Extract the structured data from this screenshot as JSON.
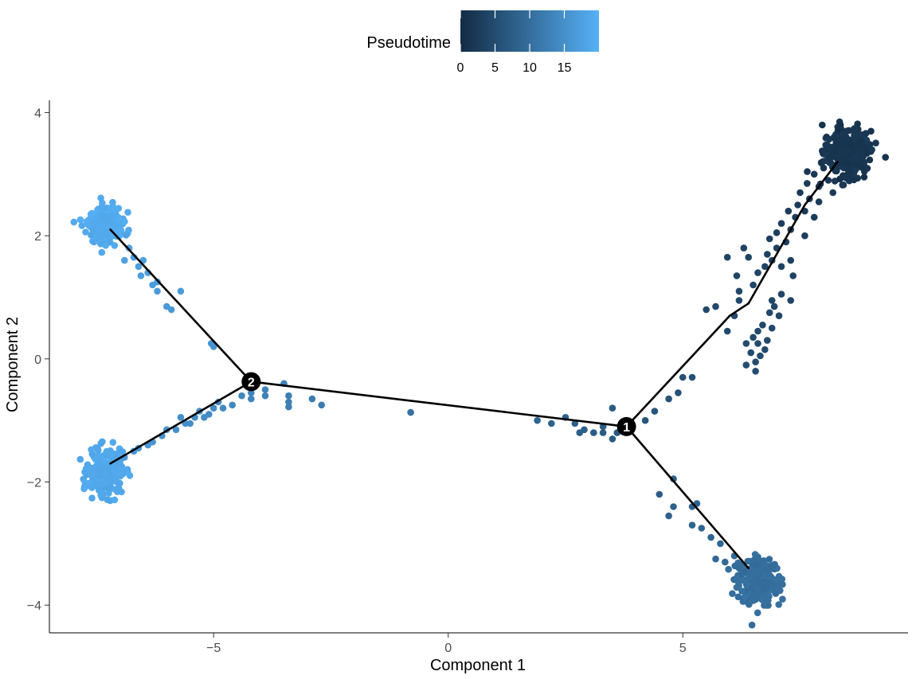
{
  "chart_data": {
    "type": "scatter",
    "xlabel": "Component 1",
    "ylabel": "Component 2",
    "xlim": [
      -8.5,
      9.8
    ],
    "ylim": [
      -4.45,
      4.2
    ],
    "x_ticks": [
      -5,
      0,
      5
    ],
    "x_tick_labels": [
      "−5",
      "0",
      "5"
    ],
    "y_ticks": [
      -4,
      -2,
      0,
      2,
      4
    ],
    "y_tick_labels": [
      "−4",
      "−2",
      "0",
      "2",
      "4"
    ],
    "grid": false,
    "legend": {
      "title": "Pseudotime",
      "placement": "top",
      "type": "colorbar",
      "range": [
        0,
        20
      ],
      "ticks": [
        0,
        5,
        10,
        15
      ],
      "tick_labels": [
        "0",
        "5",
        "10",
        "15"
      ],
      "color_low": "#132B43",
      "color_high": "#56B1F7"
    },
    "trajectory": {
      "nodes": [
        {
          "x": 8.3,
          "y": 3.2
        },
        {
          "x": 7.6,
          "y": 2.5
        },
        {
          "x": 6.4,
          "y": 0.9
        },
        {
          "x": 6.0,
          "y": 0.7
        },
        {
          "x": 3.8,
          "y": -1.1
        },
        {
          "x": -4.2,
          "y": -0.37
        },
        {
          "x": -7.2,
          "y": 2.1
        },
        {
          "x": -7.2,
          "y": -1.7
        },
        {
          "x": 6.4,
          "y": -3.4
        }
      ],
      "edges": [
        [
          0,
          1
        ],
        [
          1,
          2
        ],
        [
          2,
          3
        ],
        [
          3,
          4
        ],
        [
          4,
          5
        ],
        [
          5,
          6
        ],
        [
          5,
          7
        ],
        [
          4,
          8
        ]
      ]
    },
    "branch_points": [
      {
        "label": "1",
        "x": 3.8,
        "y": -1.1
      },
      {
        "label": "2",
        "x": -4.2,
        "y": -0.37
      }
    ],
    "clusters": [
      {
        "cx": 8.5,
        "cy": 3.35,
        "sx": 0.25,
        "sy": 0.2,
        "n": 300,
        "pseudotime": 1.5
      },
      {
        "cx": 6.6,
        "cy": -3.6,
        "sx": 0.22,
        "sy": 0.18,
        "n": 280,
        "pseudotime": 10.0
      },
      {
        "cx": -7.3,
        "cy": 2.2,
        "sx": 0.18,
        "sy": 0.15,
        "n": 250,
        "pseudotime": 19.0
      },
      {
        "cx": -7.3,
        "cy": -1.85,
        "sx": 0.18,
        "sy": 0.17,
        "n": 250,
        "pseudotime": 18.5
      }
    ],
    "points": [
      {
        "x": 8.0,
        "y": 3.1,
        "t": 1.8
      },
      {
        "x": 7.9,
        "y": 2.8,
        "t": 2.0
      },
      {
        "x": 7.7,
        "y": 2.6,
        "t": 2.3
      },
      {
        "x": 7.6,
        "y": 2.4,
        "t": 2.5
      },
      {
        "x": 7.4,
        "y": 2.3,
        "t": 2.7
      },
      {
        "x": 7.3,
        "y": 2.1,
        "t": 2.9
      },
      {
        "x": 7.2,
        "y": 1.9,
        "t": 3.1
      },
      {
        "x": 7.0,
        "y": 1.8,
        "t": 3.3
      },
      {
        "x": 6.9,
        "y": 1.6,
        "t": 3.5
      },
      {
        "x": 6.8,
        "y": 1.7,
        "t": 3.4
      },
      {
        "x": 6.6,
        "y": 1.4,
        "t": 3.8
      },
      {
        "x": 6.5,
        "y": 1.2,
        "t": 4.0
      },
      {
        "x": 6.3,
        "y": 1.8,
        "t": 3.5
      },
      {
        "x": 6.4,
        "y": 1.65,
        "t": 3.6
      },
      {
        "x": 6.15,
        "y": 1.35,
        "t": 3.9
      },
      {
        "x": 6.2,
        "y": 1.1,
        "t": 4.1
      },
      {
        "x": 6.2,
        "y": 0.95,
        "t": 4.3
      },
      {
        "x": 5.95,
        "y": 1.65,
        "t": 3.7
      },
      {
        "x": 7.1,
        "y": 2.2,
        "t": 2.8
      },
      {
        "x": 7.5,
        "y": 2.7,
        "t": 2.2
      },
      {
        "x": 7.8,
        "y": 2.3,
        "t": 2.6
      },
      {
        "x": 7.6,
        "y": 2.0,
        "t": 2.9
      },
      {
        "x": 7.3,
        "y": 1.6,
        "t": 3.3
      },
      {
        "x": 7.1,
        "y": 1.5,
        "t": 3.5
      },
      {
        "x": 7.8,
        "y": 3.0,
        "t": 2.0
      },
      {
        "x": 8.1,
        "y": 2.9,
        "t": 1.9
      },
      {
        "x": 7.9,
        "y": 2.55,
        "t": 2.4
      },
      {
        "x": 8.2,
        "y": 2.7,
        "t": 2.1
      },
      {
        "x": 7.65,
        "y": 2.85,
        "t": 2.1
      },
      {
        "x": 7.45,
        "y": 2.5,
        "t": 2.4
      },
      {
        "x": 7.25,
        "y": 2.4,
        "t": 2.6
      },
      {
        "x": 7.0,
        "y": 2.05,
        "t": 3.0
      },
      {
        "x": 6.85,
        "y": 1.95,
        "t": 3.1
      },
      {
        "x": 6.75,
        "y": 1.5,
        "t": 3.6
      },
      {
        "x": 7.35,
        "y": 1.35,
        "t": 3.6
      },
      {
        "x": 7.1,
        "y": 1.05,
        "t": 3.9
      },
      {
        "x": 6.9,
        "y": 0.95,
        "t": 4.0
      },
      {
        "x": 7.3,
        "y": 0.95,
        "t": 3.9
      },
      {
        "x": 7.05,
        "y": 0.7,
        "t": 4.2
      },
      {
        "x": 6.85,
        "y": 0.75,
        "t": 4.2
      },
      {
        "x": 6.9,
        "y": 0.5,
        "t": 4.4
      },
      {
        "x": 6.7,
        "y": 0.55,
        "t": 4.4
      },
      {
        "x": 6.8,
        "y": 0.3,
        "t": 4.6
      },
      {
        "x": 6.6,
        "y": 0.45,
        "t": 4.5
      },
      {
        "x": 6.6,
        "y": 0.25,
        "t": 4.7
      },
      {
        "x": 6.5,
        "y": 0.35,
        "t": 4.6
      },
      {
        "x": 6.75,
        "y": 0.15,
        "t": 4.7
      },
      {
        "x": 6.45,
        "y": 0.1,
        "t": 4.8
      },
      {
        "x": 6.55,
        "y": -0.05,
        "t": 4.9
      },
      {
        "x": 6.35,
        "y": -0.1,
        "t": 5.0
      },
      {
        "x": 6.55,
        "y": -0.2,
        "t": 5.0
      },
      {
        "x": 6.35,
        "y": 0.25,
        "t": 4.8
      },
      {
        "x": 6.65,
        "y": 0.05,
        "t": 4.8
      },
      {
        "x": 6.95,
        "y": 0.85,
        "t": 4.1
      },
      {
        "x": 5.7,
        "y": 0.85,
        "t": 4.4
      },
      {
        "x": 5.5,
        "y": 0.8,
        "t": 4.5
      },
      {
        "x": 6.1,
        "y": 0.7,
        "t": 4.5
      },
      {
        "x": 5.95,
        "y": 0.45,
        "t": 4.7
      },
      {
        "x": 5.2,
        "y": -0.3,
        "t": 5.5
      },
      {
        "x": 5.0,
        "y": -0.3,
        "t": 5.6
      },
      {
        "x": 4.9,
        "y": -0.55,
        "t": 5.8
      },
      {
        "x": 4.7,
        "y": -0.65,
        "t": 5.9
      },
      {
        "x": 4.4,
        "y": -0.85,
        "t": 6.1
      },
      {
        "x": 4.2,
        "y": -1.0,
        "t": 6.2
      },
      {
        "x": 3.6,
        "y": -1.2,
        "t": 6.8
      },
      {
        "x": 3.5,
        "y": -0.8,
        "t": 7.0
      },
      {
        "x": 3.5,
        "y": -1.3,
        "t": 7.1
      },
      {
        "x": 3.3,
        "y": -1.1,
        "t": 7.3
      },
      {
        "x": 3.3,
        "y": -1.2,
        "t": 7.3
      },
      {
        "x": 3.1,
        "y": -1.2,
        "t": 7.5
      },
      {
        "x": 2.9,
        "y": -1.15,
        "t": 7.7
      },
      {
        "x": 2.8,
        "y": -1.2,
        "t": 7.8
      },
      {
        "x": 2.7,
        "y": -1.05,
        "t": 7.9
      },
      {
        "x": 2.5,
        "y": -0.95,
        "t": 8.0
      },
      {
        "x": 2.2,
        "y": -1.05,
        "t": 8.2
      },
      {
        "x": 1.9,
        "y": -1.0,
        "t": 8.5
      },
      {
        "x": -0.8,
        "y": -0.87,
        "t": 10.5
      },
      {
        "x": -2.7,
        "y": -0.75,
        "t": 12.0
      },
      {
        "x": -2.9,
        "y": -0.65,
        "t": 12.2
      },
      {
        "x": -3.4,
        "y": -0.6,
        "t": 12.6
      },
      {
        "x": -3.4,
        "y": -0.7,
        "t": 12.6
      },
      {
        "x": -3.4,
        "y": -0.78,
        "t": 12.7
      },
      {
        "x": -3.5,
        "y": -0.4,
        "t": 12.8
      },
      {
        "x": -3.9,
        "y": -0.5,
        "t": 13.1
      },
      {
        "x": -3.9,
        "y": -0.6,
        "t": 13.1
      },
      {
        "x": -4.2,
        "y": -0.55,
        "t": 13.4
      },
      {
        "x": -4.2,
        "y": -0.65,
        "t": 13.4
      },
      {
        "x": 4.5,
        "y": -2.2,
        "t": 7.5
      },
      {
        "x": 4.8,
        "y": -1.95,
        "t": 7.8
      },
      {
        "x": 4.8,
        "y": -2.4,
        "t": 8.0
      },
      {
        "x": 4.7,
        "y": -2.55,
        "t": 8.1
      },
      {
        "x": 5.2,
        "y": -2.4,
        "t": 8.3
      },
      {
        "x": 5.3,
        "y": -2.35,
        "t": 8.4
      },
      {
        "x": 5.2,
        "y": -2.7,
        "t": 8.5
      },
      {
        "x": 5.4,
        "y": -2.75,
        "t": 8.6
      },
      {
        "x": 5.6,
        "y": -2.9,
        "t": 8.8
      },
      {
        "x": 5.8,
        "y": -3.0,
        "t": 9.0
      },
      {
        "x": 5.9,
        "y": -3.3,
        "t": 9.2
      },
      {
        "x": 6.1,
        "y": -3.2,
        "t": 9.3
      },
      {
        "x": 5.7,
        "y": -3.25,
        "t": 9.1
      },
      {
        "x": 6.2,
        "y": -3.4,
        "t": 9.4
      },
      {
        "x": -4.4,
        "y": -0.6,
        "t": 13.6
      },
      {
        "x": -4.6,
        "y": -0.75,
        "t": 13.9
      },
      {
        "x": -4.8,
        "y": -0.8,
        "t": 14.1
      },
      {
        "x": -5.0,
        "y": -0.8,
        "t": 14.3
      },
      {
        "x": -5.1,
        "y": -0.9,
        "t": 14.4
      },
      {
        "x": -5.4,
        "y": -0.95,
        "t": 14.7
      },
      {
        "x": -5.6,
        "y": -1.05,
        "t": 14.9
      },
      {
        "x": -5.8,
        "y": -1.15,
        "t": 15.1
      },
      {
        "x": -6.1,
        "y": -1.25,
        "t": 15.4
      },
      {
        "x": -6.4,
        "y": -1.4,
        "t": 15.8
      },
      {
        "x": -6.7,
        "y": -1.5,
        "t": 16.1
      },
      {
        "x": -6.9,
        "y": -1.6,
        "t": 16.3
      },
      {
        "x": -5.3,
        "y": -0.85,
        "t": 14.6
      },
      {
        "x": -5.7,
        "y": -0.95,
        "t": 15.0
      },
      {
        "x": -6.0,
        "y": -1.15,
        "t": 15.3
      },
      {
        "x": -6.3,
        "y": -1.35,
        "t": 15.6
      },
      {
        "x": -5.2,
        "y": -0.95,
        "t": 14.5
      },
      {
        "x": -5.5,
        "y": -1.05,
        "t": 14.8
      },
      {
        "x": -6.6,
        "y": -1.45,
        "t": 16.0
      },
      {
        "x": -4.9,
        "y": -0.7,
        "t": 14.2
      },
      {
        "x": -6.8,
        "y": 1.8,
        "t": 17.6
      },
      {
        "x": -6.6,
        "y": 1.5,
        "t": 17.2
      },
      {
        "x": -6.5,
        "y": 1.6,
        "t": 17.3
      },
      {
        "x": -6.4,
        "y": 1.4,
        "t": 17.1
      },
      {
        "x": -6.3,
        "y": 1.2,
        "t": 16.8
      },
      {
        "x": -6.2,
        "y": 1.1,
        "t": 16.7
      },
      {
        "x": -6.2,
        "y": 1.25,
        "t": 16.8
      },
      {
        "x": -6.0,
        "y": 0.85,
        "t": 16.5
      },
      {
        "x": -5.9,
        "y": 0.8,
        "t": 16.4
      },
      {
        "x": -5.7,
        "y": 1.1,
        "t": 16.5
      },
      {
        "x": -5.05,
        "y": 0.25,
        "t": 15.8
      },
      {
        "x": -5.0,
        "y": 0.2,
        "t": 15.7
      },
      {
        "x": -6.7,
        "y": 1.65,
        "t": 17.4
      },
      {
        "x": -6.9,
        "y": 1.6,
        "t": 17.5
      },
      {
        "x": -6.55,
        "y": 1.35,
        "t": 17.1
      }
    ]
  }
}
